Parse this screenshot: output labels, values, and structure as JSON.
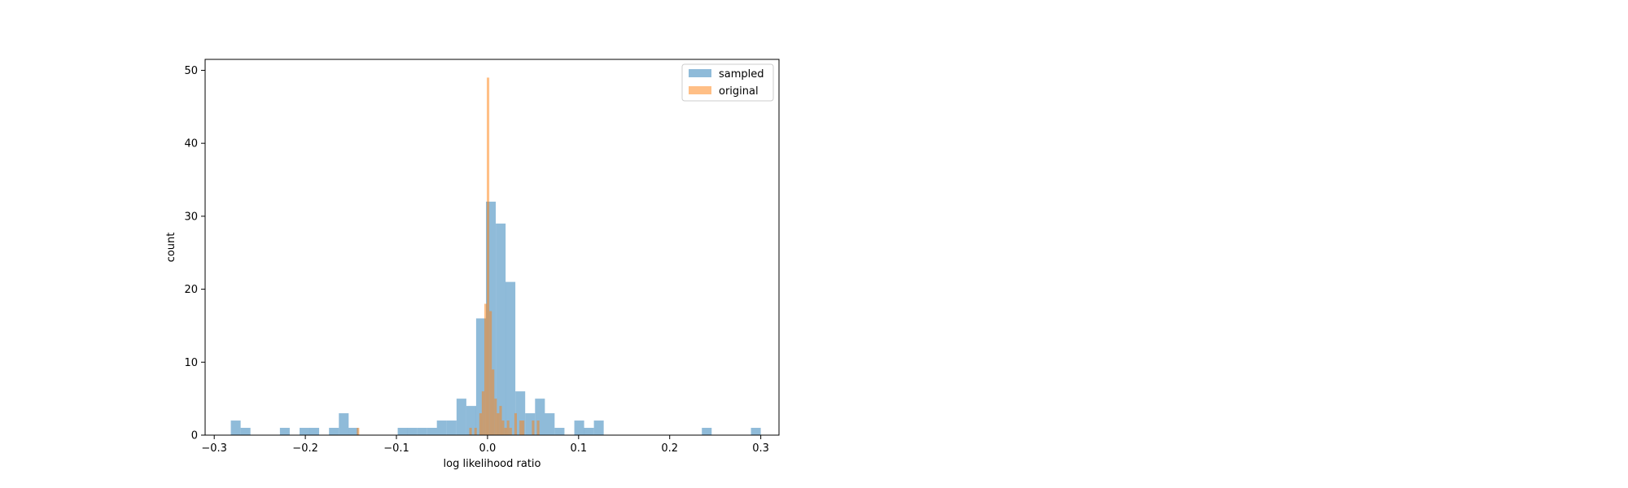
{
  "chart_data": {
    "type": "histogram",
    "title": "",
    "xlabel": "log likelihood ratio",
    "ylabel": "count",
    "xlim": [
      -0.31,
      0.32
    ],
    "ylim": [
      0,
      51.5
    ],
    "x_ticks": [
      -0.3,
      -0.2,
      -0.1,
      0.0,
      0.1,
      0.2,
      0.3
    ],
    "x_tick_labels": [
      "−0.3",
      "−0.2",
      "−0.1",
      "0.0",
      "0.1",
      "0.2",
      "0.3"
    ],
    "y_ticks": [
      0,
      10,
      20,
      30,
      40,
      50
    ],
    "y_tick_labels": [
      "0",
      "10",
      "20",
      "30",
      "40",
      "50"
    ],
    "grid": false,
    "legend": {
      "position": "top-right",
      "entries": [
        "sampled",
        "original"
      ]
    },
    "series": [
      {
        "name": "sampled",
        "color": "#1f77b4",
        "alpha": 0.5,
        "bin_width": 0.01077,
        "bins": [
          {
            "x0": -0.2818,
            "count": 2
          },
          {
            "x0": -0.271,
            "count": 1
          },
          {
            "x0": -0.2279,
            "count": 1
          },
          {
            "x0": -0.2063,
            "count": 1
          },
          {
            "x0": -0.1956,
            "count": 1
          },
          {
            "x0": -0.174,
            "count": 1
          },
          {
            "x0": -0.1632,
            "count": 3
          },
          {
            "x0": -0.1525,
            "count": 1
          },
          {
            "x0": -0.0986,
            "count": 1
          },
          {
            "x0": -0.0879,
            "count": 1
          },
          {
            "x0": -0.0771,
            "count": 1
          },
          {
            "x0": -0.0663,
            "count": 1
          },
          {
            "x0": -0.0556,
            "count": 2
          },
          {
            "x0": -0.0448,
            "count": 2
          },
          {
            "x0": -0.034,
            "count": 5
          },
          {
            "x0": -0.0232,
            "count": 4
          },
          {
            "x0": -0.0125,
            "count": 16
          },
          {
            "x0": -0.0017,
            "count": 32
          },
          {
            "x0": 0.0091,
            "count": 29
          },
          {
            "x0": 0.0198,
            "count": 21
          },
          {
            "x0": 0.0306,
            "count": 6
          },
          {
            "x0": 0.0414,
            "count": 3
          },
          {
            "x0": 0.0522,
            "count": 5
          },
          {
            "x0": 0.0629,
            "count": 3
          },
          {
            "x0": 0.0737,
            "count": 1
          },
          {
            "x0": 0.0953,
            "count": 2
          },
          {
            "x0": 0.106,
            "count": 1
          },
          {
            "x0": 0.1168,
            "count": 2
          },
          {
            "x0": 0.2353,
            "count": 1
          },
          {
            "x0": 0.2892,
            "count": 1
          }
        ]
      },
      {
        "name": "original",
        "color": "#ff7f0e",
        "alpha": 0.5,
        "bin_width": 0.00275,
        "bins": [
          {
            "x0": -0.1435,
            "count": 1
          },
          {
            "x0": -0.02,
            "count": 1
          },
          {
            "x0": -0.0145,
            "count": 1
          },
          {
            "x0": -0.009,
            "count": 3
          },
          {
            "x0": -0.0063,
            "count": 6
          },
          {
            "x0": -0.0035,
            "count": 18
          },
          {
            "x0": -0.0008,
            "count": 49
          },
          {
            "x0": 0.002,
            "count": 17
          },
          {
            "x0": 0.0047,
            "count": 9
          },
          {
            "x0": 0.0075,
            "count": 5
          },
          {
            "x0": 0.0102,
            "count": 3
          },
          {
            "x0": 0.013,
            "count": 4
          },
          {
            "x0": 0.0157,
            "count": 2
          },
          {
            "x0": 0.0185,
            "count": 1
          },
          {
            "x0": 0.0212,
            "count": 2
          },
          {
            "x0": 0.024,
            "count": 1
          },
          {
            "x0": 0.0295,
            "count": 3
          },
          {
            "x0": 0.035,
            "count": 2
          },
          {
            "x0": 0.0377,
            "count": 2
          },
          {
            "x0": 0.0487,
            "count": 2
          },
          {
            "x0": 0.0542,
            "count": 2
          }
        ]
      }
    ]
  }
}
